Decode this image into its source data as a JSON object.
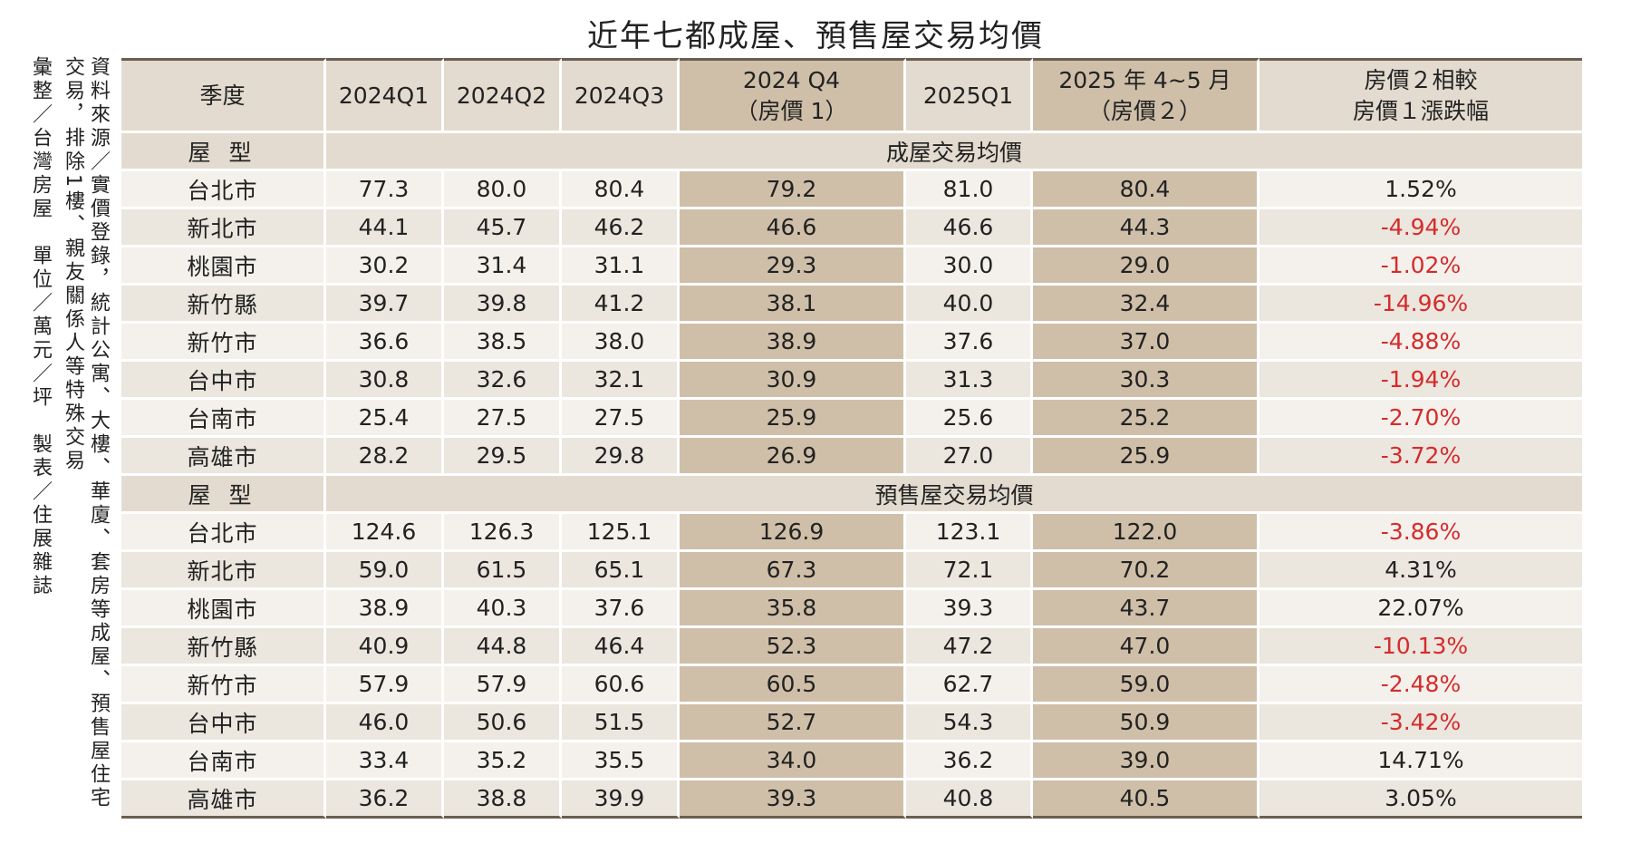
{
  "title": "近年七都成屋、預售屋交易均價",
  "notes": {
    "source": "資料來源／實價登錄，統計公寓、大樓、華廈、套房等成屋、預售屋住宅交易，排除1樓、親友關係人等特殊交易",
    "credit": "彙整／台灣房屋　單位／萬元／坪　製表／住展雜誌"
  },
  "table": {
    "headers": {
      "season": "季度",
      "q1_2024": "2024Q1",
      "q2_2024": "2024Q2",
      "q3_2024": "2024Q3",
      "q4_2024_line1": "2024 Q4",
      "q4_2024_line2": "（房價 1）",
      "q1_2025": "2025Q1",
      "m45_2025_line1": "2025 年 4~5 月",
      "m45_2025_line2": "（房價２）",
      "change_line1": "房價２相較",
      "change_line2": "房價１漲跌幅"
    },
    "sections": [
      {
        "type_label": "屋 型",
        "name": "成屋交易均價",
        "rows": [
          {
            "region": "台北市",
            "values": [
              "77.3",
              "80.0",
              "80.4",
              "79.2",
              "81.0",
              "80.4"
            ],
            "change": "1.52%"
          },
          {
            "region": "新北市",
            "values": [
              "44.1",
              "45.7",
              "46.2",
              "46.6",
              "46.6",
              "44.3"
            ],
            "change": "-4.94%"
          },
          {
            "region": "桃園市",
            "values": [
              "30.2",
              "31.4",
              "31.1",
              "29.3",
              "30.0",
              "29.0"
            ],
            "change": "-1.02%"
          },
          {
            "region": "新竹縣",
            "values": [
              "39.7",
              "39.8",
              "41.2",
              "38.1",
              "40.0",
              "32.4"
            ],
            "change": "-14.96%"
          },
          {
            "region": "新竹市",
            "values": [
              "36.6",
              "38.5",
              "38.0",
              "38.9",
              "37.6",
              "37.0"
            ],
            "change": "-4.88%"
          },
          {
            "region": "台中市",
            "values": [
              "30.8",
              "32.6",
              "32.1",
              "30.9",
              "31.3",
              "30.3"
            ],
            "change": "-1.94%"
          },
          {
            "region": "台南市",
            "values": [
              "25.4",
              "27.5",
              "27.5",
              "25.9",
              "25.6",
              "25.2"
            ],
            "change": "-2.70%"
          },
          {
            "region": "高雄市",
            "values": [
              "28.2",
              "29.5",
              "29.8",
              "26.9",
              "27.0",
              "25.9"
            ],
            "change": "-3.72%"
          }
        ]
      },
      {
        "type_label": "屋 型",
        "name": "預售屋交易均價",
        "rows": [
          {
            "region": "台北市",
            "values": [
              "124.6",
              "126.3",
              "125.1",
              "126.9",
              "123.1",
              "122.0"
            ],
            "change": "-3.86%"
          },
          {
            "region": "新北市",
            "values": [
              "59.0",
              "61.5",
              "65.1",
              "67.3",
              "72.1",
              "70.2"
            ],
            "change": "4.31%"
          },
          {
            "region": "桃園市",
            "values": [
              "38.9",
              "40.3",
              "37.6",
              "35.8",
              "39.3",
              "43.7"
            ],
            "change": "22.07%"
          },
          {
            "region": "新竹縣",
            "values": [
              "40.9",
              "44.8",
              "46.4",
              "52.3",
              "47.2",
              "47.0"
            ],
            "change": "-10.13%"
          },
          {
            "region": "新竹市",
            "values": [
              "57.9",
              "57.9",
              "60.6",
              "60.5",
              "62.7",
              "59.0"
            ],
            "change": "-2.48%"
          },
          {
            "region": "台中市",
            "values": [
              "46.0",
              "50.6",
              "51.5",
              "52.7",
              "54.3",
              "50.9"
            ],
            "change": "-3.42%"
          },
          {
            "region": "台南市",
            "values": [
              "33.4",
              "35.2",
              "35.5",
              "34.0",
              "36.2",
              "39.0"
            ],
            "change": "14.71%"
          },
          {
            "region": "高雄市",
            "values": [
              "36.2",
              "38.8",
              "39.9",
              "39.3",
              "40.8",
              "40.5"
            ],
            "change": "3.05%"
          }
        ]
      }
    ],
    "colors": {
      "negative": "#d52b2b",
      "highlight_column": "#cfbfa9",
      "header_band": "#e3dbcf",
      "rule": "#6b5e4f"
    }
  }
}
